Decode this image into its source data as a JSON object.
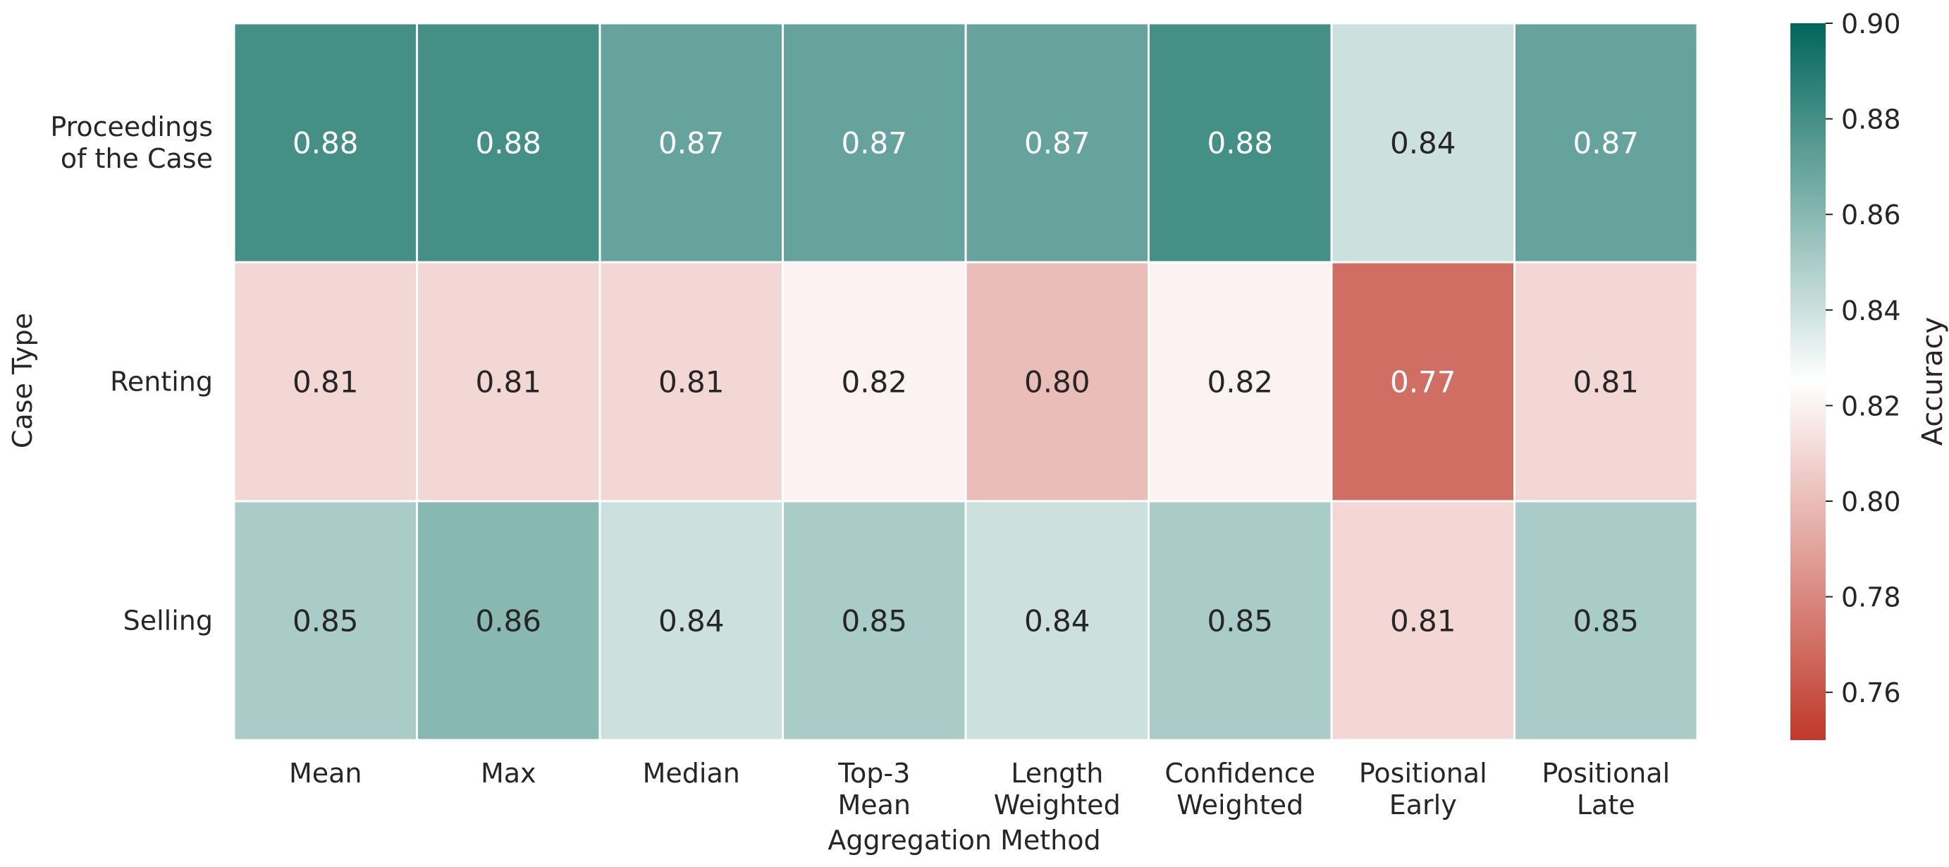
{
  "chart_data": {
    "type": "heatmap",
    "title": "",
    "xlabel": "Aggregation Method",
    "ylabel": "Case Type",
    "x_categories": [
      [
        "Mean"
      ],
      [
        "Max"
      ],
      [
        "Median"
      ],
      [
        "Top-3",
        "Mean"
      ],
      [
        "Length",
        "Weighted"
      ],
      [
        "Confidence",
        "Weighted"
      ],
      [
        "Positional",
        "Early"
      ],
      [
        "Positional",
        "Late"
      ]
    ],
    "y_categories": [
      [
        "Proceedings",
        "of the Case"
      ],
      [
        "Renting"
      ],
      [
        "Selling"
      ]
    ],
    "values": [
      [
        0.88,
        0.88,
        0.87,
        0.87,
        0.87,
        0.88,
        0.84,
        0.87
      ],
      [
        0.81,
        0.81,
        0.81,
        0.82,
        0.8,
        0.82,
        0.77,
        0.81
      ],
      [
        0.85,
        0.86,
        0.84,
        0.85,
        0.84,
        0.85,
        0.81,
        0.85
      ]
    ],
    "cell_labels": [
      [
        "0.88",
        "0.88",
        "0.87",
        "0.87",
        "0.87",
        "0.88",
        "0.84",
        "0.87"
      ],
      [
        "0.81",
        "0.81",
        "0.81",
        "0.82",
        "0.80",
        "0.82",
        "0.77",
        "0.81"
      ],
      [
        "0.85",
        "0.86",
        "0.84",
        "0.85",
        "0.84",
        "0.85",
        "0.81",
        "0.85"
      ]
    ],
    "colorbar": {
      "label": "Accuracy",
      "range": [
        0.75,
        0.9
      ],
      "center": 0.825,
      "ticks": [
        "0.76",
        "0.78",
        "0.80",
        "0.82",
        "0.84",
        "0.86",
        "0.88",
        "0.90"
      ],
      "low_color": "#c0392b",
      "mid_color": "#ffffff",
      "high_color": "#00665a"
    }
  }
}
